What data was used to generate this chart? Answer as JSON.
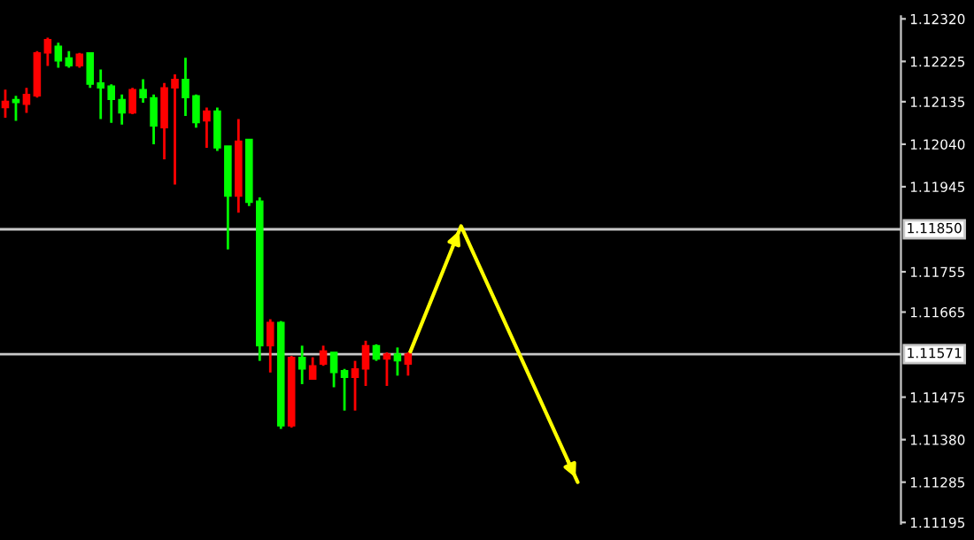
{
  "chart_data": {
    "type": "candlestick",
    "categories": [
      null,
      null,
      null,
      null,
      null,
      null,
      null,
      null,
      null,
      null,
      null,
      null,
      null,
      null,
      null,
      null,
      null,
      null,
      null,
      null,
      null,
      null,
      null,
      null,
      null,
      null,
      null,
      null,
      null,
      null,
      null,
      null,
      null,
      null,
      null,
      null,
      null,
      null,
      null,
      null,
      null,
      null,
      null,
      null,
      null,
      null,
      null,
      null,
      null,
      null,
      null,
      null,
      null,
      null,
      null,
      null,
      null,
      null,
      null,
      null,
      null,
      null,
      null,
      null,
      null,
      null,
      null,
      null,
      null,
      null,
      null,
      null,
      null,
      null,
      null,
      null,
      null,
      null,
      null,
      null,
      null,
      null,
      null,
      null,
      null
    ],
    "ohlc": [
      [
        1.12122,
        1.12162,
        1.12099,
        1.12136
      ],
      [
        1.1214,
        1.12148,
        1.12092,
        1.12133
      ],
      [
        1.12129,
        1.12166,
        1.1211,
        1.12151
      ],
      [
        1.12148,
        1.12248,
        1.12144,
        1.12244
      ],
      [
        1.12244,
        1.12278,
        1.12215,
        1.12274
      ],
      [
        1.12259,
        1.12267,
        1.12211,
        1.12226
      ],
      [
        1.12233,
        1.12248,
        1.12211,
        1.12215
      ],
      [
        1.12215,
        1.12244,
        1.12211,
        1.12241
      ],
      [
        1.12244,
        1.12244,
        1.12166,
        1.12174
      ],
      [
        1.12177,
        1.12207,
        1.12096,
        1.12166
      ],
      [
        1.1217,
        1.12174,
        1.12088,
        1.1214
      ],
      [
        1.1214,
        1.12151,
        1.12084,
        1.1211
      ],
      [
        1.1211,
        1.12166,
        1.12107,
        1.12162
      ],
      [
        1.12162,
        1.12185,
        1.12133,
        1.12144
      ],
      [
        1.12144,
        1.12151,
        1.1204,
        1.12081
      ],
      [
        1.12077,
        1.12177,
        1.12006,
        1.12166
      ],
      [
        1.12166,
        1.12196,
        1.1195,
        1.12185
      ],
      [
        1.12185,
        1.12233,
        1.12103,
        1.12144
      ],
      [
        1.12148,
        1.12151,
        1.12077,
        1.12088
      ],
      [
        1.12092,
        1.12122,
        1.12032,
        1.12114
      ],
      [
        1.12114,
        1.12122,
        1.12025,
        1.12032
      ],
      [
        1.12036,
        1.12036,
        1.11805,
        1.11924
      ],
      [
        1.11924,
        1.12096,
        1.11887,
        1.12047
      ],
      [
        1.12051,
        1.12051,
        1.11902,
        1.1191
      ],
      [
        1.11913,
        1.11921,
        1.11556,
        1.1159
      ],
      [
        1.1159,
        1.11649,
        1.1153,
        1.11642
      ],
      [
        1.11642,
        1.11645,
        1.11404,
        1.11411
      ],
      [
        1.11411,
        1.11567,
        1.11407,
        1.11564
      ],
      [
        1.11564,
        1.1159,
        1.11504,
        1.11538
      ],
      [
        1.11515,
        1.11564,
        1.11515,
        1.11545
      ],
      [
        1.11549,
        1.1159,
        1.11545,
        1.11578
      ],
      [
        1.11575,
        1.11575,
        1.11497,
        1.1153
      ],
      [
        1.11534,
        1.11538,
        1.11445,
        1.11519
      ],
      [
        1.11519,
        1.11556,
        1.11445,
        1.11538
      ],
      [
        1.11538,
        1.11601,
        1.115,
        1.1159
      ],
      [
        1.1159,
        1.11593,
        1.11556,
        1.1156
      ],
      [
        1.1156,
        1.11575,
        1.115,
        1.11571
      ],
      [
        1.11571,
        1.11586,
        1.11523,
        1.11556
      ],
      [
        1.11549,
        1.11575,
        1.11523,
        1.11571
      ],
      null,
      null,
      null,
      null,
      null,
      null,
      null,
      null,
      null,
      null,
      null,
      null,
      null,
      null,
      null,
      null,
      null,
      null,
      null,
      null,
      null,
      null,
      null,
      null,
      null,
      null,
      null,
      null,
      null,
      null,
      null,
      null,
      null,
      null,
      null,
      null,
      null,
      null,
      null,
      null,
      null,
      null,
      null,
      null,
      null,
      null
    ],
    "colors": [
      "#ff0000",
      "#00ff00",
      "#ff0000",
      "#ff0000",
      "#ff0000",
      "#00ff00",
      "#00ff00",
      "#ff0000",
      "#00ff00",
      "#00ff00",
      "#00ff00",
      "#00ff00",
      "#ff0000",
      "#00ff00",
      "#00ff00",
      "#ff0000",
      "#ff0000",
      "#00ff00",
      "#00ff00",
      "#ff0000",
      "#00ff00",
      "#00ff00",
      "#ff0000",
      "#00ff00",
      "#00ff00",
      "#ff0000",
      "#00ff00",
      "#ff0000",
      "#00ff00",
      "#ff0000",
      "#ff0000",
      "#00ff00",
      "#00ff00",
      "#ff0000",
      "#ff0000",
      "#00ff00",
      "#ff0000",
      "#00ff00",
      "#ff0000",
      null,
      null,
      null,
      null,
      null,
      null,
      null,
      null,
      null,
      null,
      null,
      null,
      null,
      null,
      null,
      null,
      null,
      null,
      null,
      null,
      null,
      null,
      null,
      null,
      null,
      null,
      null,
      null,
      null,
      null,
      null,
      null,
      null,
      null,
      null,
      null,
      null,
      null,
      null,
      null,
      null,
      null,
      null,
      null,
      null,
      null
    ],
    "series": [
      {
        "type": "line",
        "color": "#ffff00",
        "values": [
          null,
          null,
          null,
          null,
          null,
          null,
          null,
          null,
          null,
          null,
          null,
          null,
          null,
          null,
          null,
          null,
          null,
          null,
          null,
          null,
          null,
          null,
          null,
          null,
          null,
          null,
          null,
          null,
          null,
          null,
          null,
          null,
          null,
          null,
          null,
          null,
          null,
          null,
          1.11564,
          null,
          null,
          null,
          null,
          1.11857,
          null,
          null,
          null,
          null,
          null,
          null,
          null,
          null,
          null,
          null,
          1.11285,
          null,
          null,
          null,
          null,
          null,
          null,
          null,
          null,
          null,
          null,
          null,
          null,
          null,
          null,
          null,
          null,
          null,
          null,
          null,
          null,
          null,
          null,
          null,
          null,
          null,
          null,
          null,
          null,
          null,
          null
        ]
      }
    ],
    "ylim": [
      1.11192,
      1.12326
    ],
    "yticks": [
      {
        "value": 1.1232,
        "label": "1.12320"
      },
      1.12225,
      1.12135,
      {
        "value": 1.1204,
        "label": "1.12040"
      },
      1.11945,
      1.11755,
      1.11665,
      1.11475,
      {
        "value": 1.1138,
        "label": "1.11380"
      },
      1.11285,
      1.11195
    ],
    "ref_lines": [
      {
        "axis": "y",
        "value": 1.1185,
        "label": "1.11850",
        "color": "#c8c8c8"
      },
      {
        "axis": "y",
        "value": 1.11571,
        "label": "1.11571",
        "color": "#c8c8c8"
      }
    ],
    "tick_labels": "y",
    "grid": false,
    "legend": false
  }
}
